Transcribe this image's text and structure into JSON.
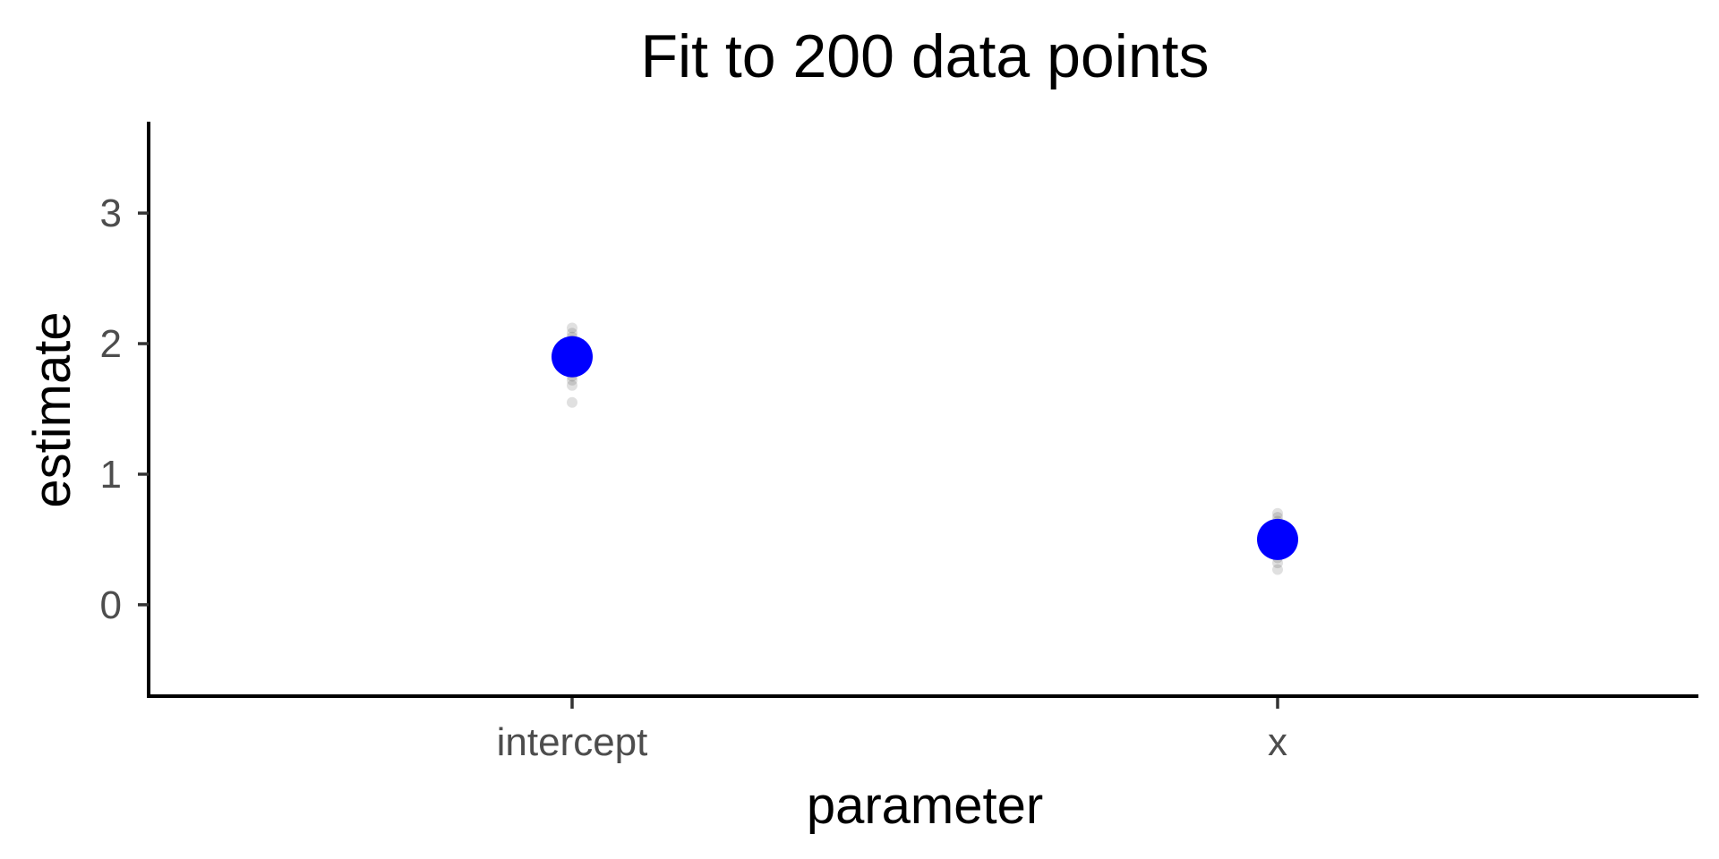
{
  "chart_data": {
    "type": "scatter",
    "title": "Fit to 200 data points",
    "xlabel": "parameter",
    "ylabel": "estimate",
    "categories": [
      "intercept",
      "x"
    ],
    "yticks": [
      0,
      1,
      2,
      3
    ],
    "ylim": [
      -0.7,
      3.7
    ],
    "grid": false,
    "legend": "none",
    "series": [
      {
        "role": "replicate_estimates",
        "color": "#000000",
        "opacity": 0.12,
        "points": [
          {
            "category": "intercept",
            "values": [
              1.55,
              1.68,
              1.72,
              1.75,
              1.78,
              1.8,
              1.82,
              1.84,
              1.86,
              1.88,
              1.9,
              1.92,
              1.94,
              1.96,
              1.98,
              2.0,
              2.02,
              2.05,
              2.08,
              2.12
            ]
          },
          {
            "category": "x",
            "values": [
              0.27,
              0.32,
              0.36,
              0.39,
              0.42,
              0.44,
              0.46,
              0.48,
              0.5,
              0.52,
              0.54,
              0.56,
              0.58,
              0.61,
              0.64,
              0.67,
              0.7
            ]
          }
        ]
      },
      {
        "role": "mean_estimate",
        "color": "#0000ff",
        "points": [
          {
            "category": "intercept",
            "value": 1.9
          },
          {
            "category": "x",
            "value": 0.5
          }
        ]
      }
    ]
  }
}
